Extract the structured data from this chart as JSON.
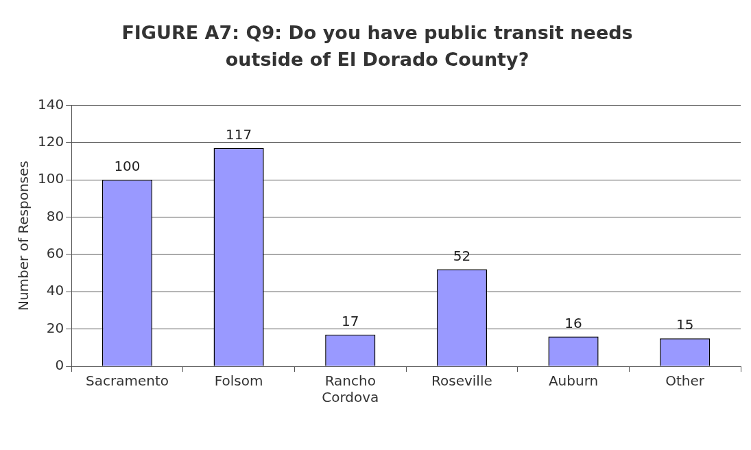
{
  "chart_data": {
    "type": "bar",
    "title": "FIGURE A7: Q9: Do you have public transit needs outside of El Dorado County?",
    "ylabel": "Number of Responses",
    "categories": [
      "Sacramento",
      "Folsom",
      "Rancho Cordova",
      "Roseville",
      "Auburn",
      "Other"
    ],
    "values": [
      100,
      117,
      17,
      52,
      16,
      15
    ],
    "color": "#9999ff",
    "ylim": [
      0,
      140
    ],
    "yticks": [
      0,
      20,
      40,
      60,
      80,
      100,
      120,
      140
    ],
    "grid": "y",
    "data_labels": true,
    "legend": false
  }
}
